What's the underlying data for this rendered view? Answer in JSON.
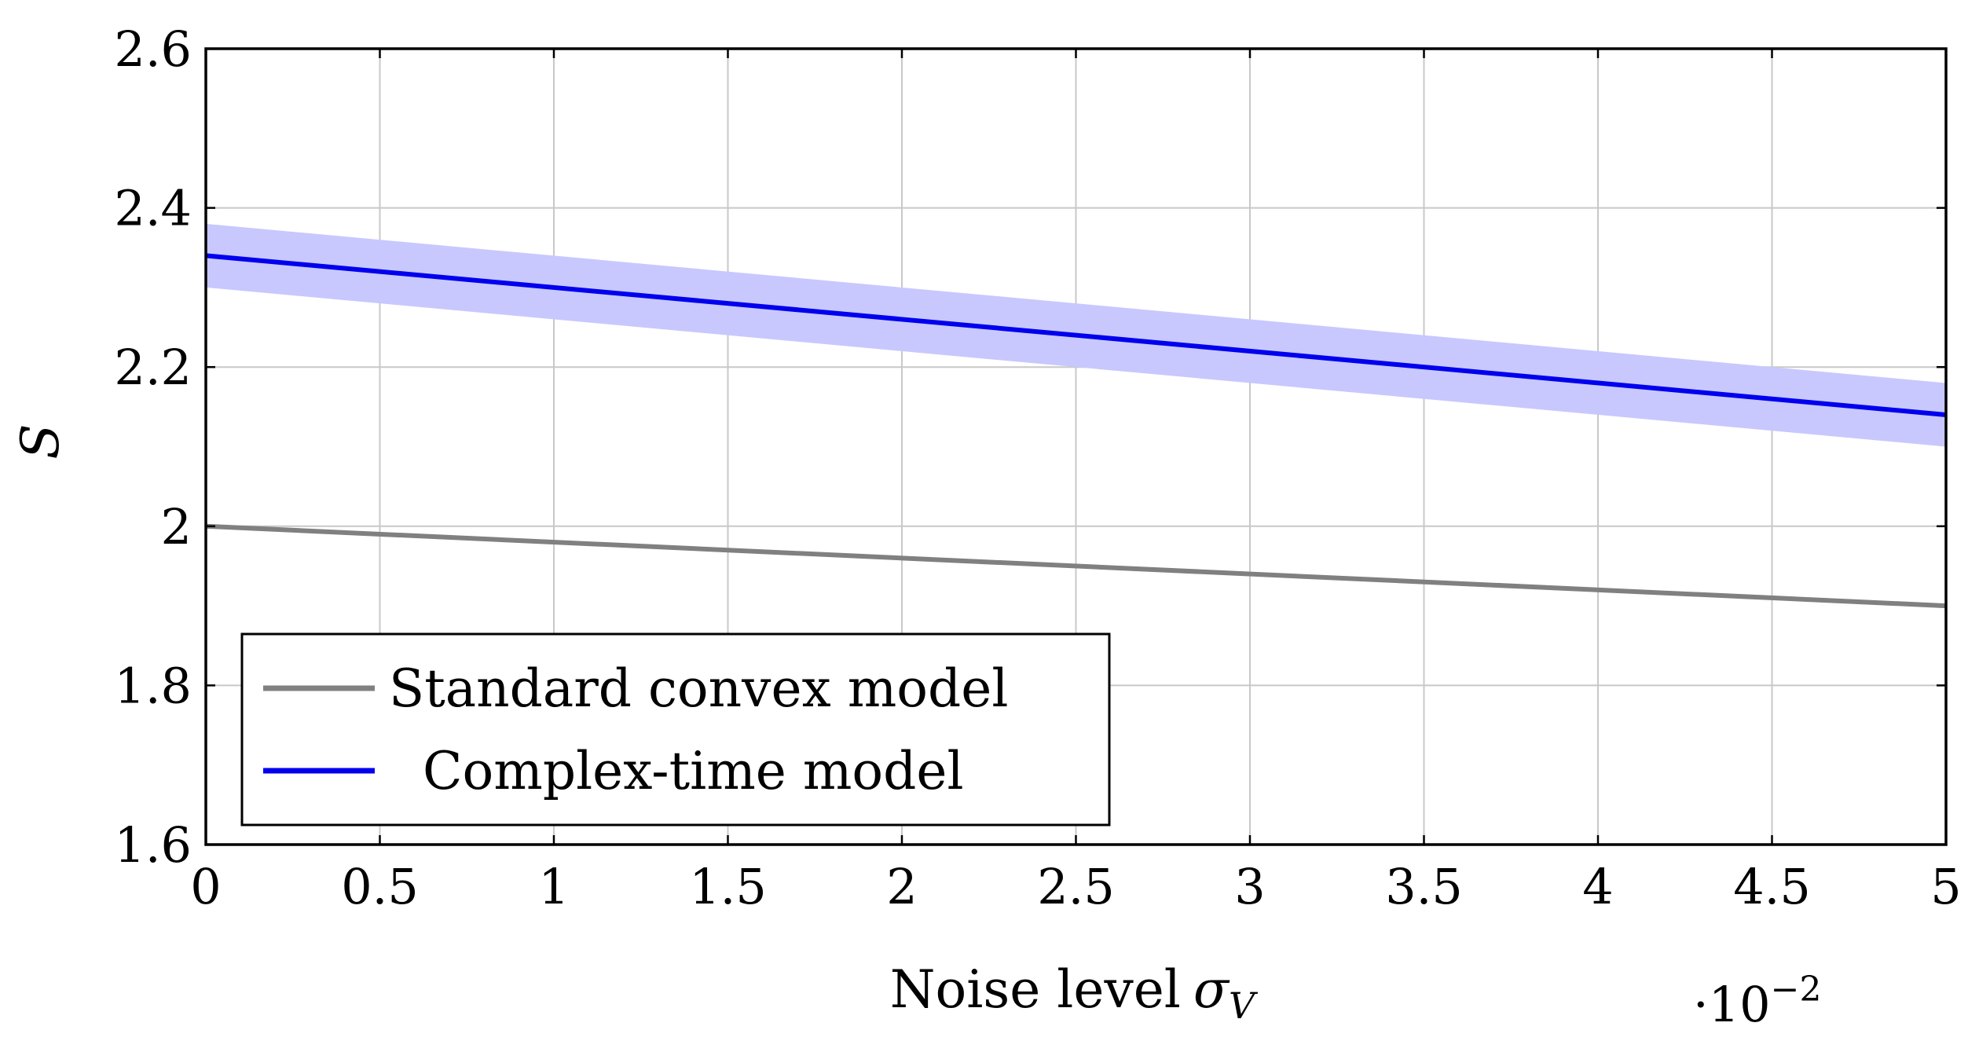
{
  "chart_data": {
    "type": "line",
    "xlabel": "Noise level",
    "xlabel_symbol": "σ",
    "xlabel_subscript": "V",
    "ylabel": "S",
    "x_multiplier": {
      "base": "·10",
      "exponent": "−2"
    },
    "xlim": [
      0,
      5
    ],
    "ylim": [
      1.6,
      2.6
    ],
    "xticks": [
      0,
      0.5,
      1,
      1.5,
      2,
      2.5,
      3,
      3.5,
      4,
      4.5,
      5
    ],
    "xtick_labels": [
      "0",
      "0.5",
      "1",
      "1.5",
      "2",
      "2.5",
      "3",
      "3.5",
      "4",
      "4.5",
      "5"
    ],
    "yticks": [
      1.6,
      1.8,
      2.0,
      2.2,
      2.4,
      2.6
    ],
    "ytick_labels": [
      "1.6",
      "1.8",
      "2",
      "2.2",
      "2.4",
      "2.6"
    ],
    "grid": true,
    "legend_position": "bottom-left",
    "series": [
      {
        "name": "Standard convex model",
        "color": "#808080",
        "x": [
          0,
          5
        ],
        "y": [
          2.0,
          1.9
        ]
      },
      {
        "name": "Complex-time model",
        "color": "#0000ee",
        "x": [
          0,
          5
        ],
        "y": [
          2.34,
          2.14
        ],
        "band": {
          "color": "#c8c8ff",
          "lower": [
            2.3,
            2.1
          ],
          "upper": [
            2.38,
            2.18
          ]
        }
      }
    ]
  }
}
